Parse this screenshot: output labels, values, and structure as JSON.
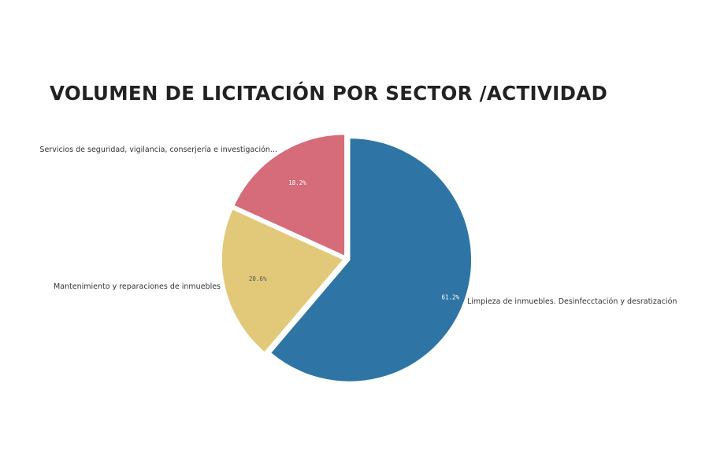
{
  "chart_data": {
    "type": "pie",
    "title": "VOLUMEN DE LICITACIÓN POR SECTOR /ACTIVIDAD",
    "slices": [
      {
        "label": "Limpieza de inmuebles. Desinfecctación y desratización",
        "value": 61.2,
        "percent_label": "61.2%",
        "color": "#2e75a6"
      },
      {
        "label": "Mantenimiento y reparaciones de inmuebles",
        "value": 20.6,
        "percent_label": "20.6%",
        "color": "#e2c97a"
      },
      {
        "label": "Servicios de seguridad,  vigilancia,  conserjería e investigación...",
        "value": 18.2,
        "percent_label": "18.2%",
        "color": "#d66b7a"
      }
    ],
    "start_angle_deg": 0,
    "direction": "clockwise",
    "legend": "none"
  }
}
